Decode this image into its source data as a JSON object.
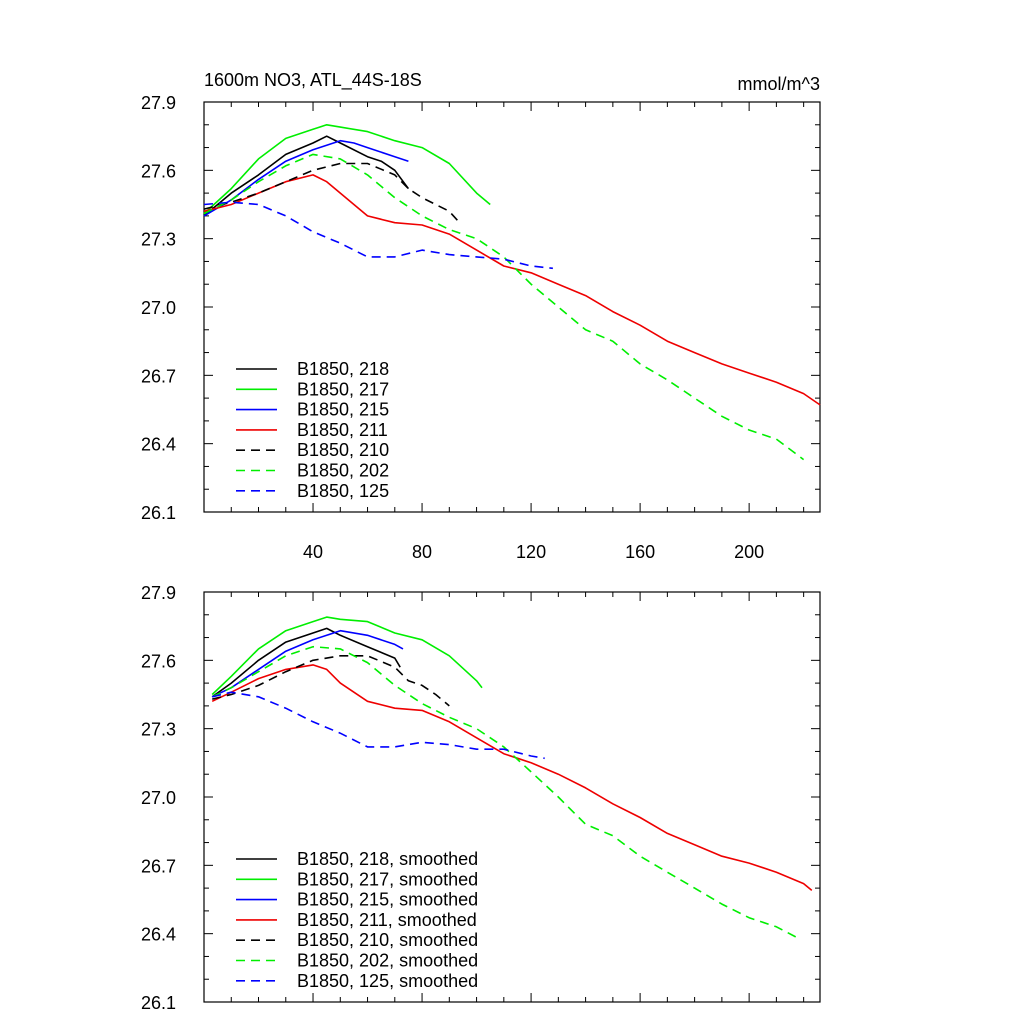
{
  "chart_data": [
    {
      "type": "line",
      "title": "1600m NO3, ATL_44S-18S",
      "units": "mmol/m^3",
      "xlim": [
        0,
        226
      ],
      "ylim": [
        26.1,
        27.9
      ],
      "xticks": [
        40,
        80,
        120,
        160,
        200
      ],
      "xtick_labels": [
        "40",
        "80",
        "120",
        "160",
        "200"
      ],
      "yticks": [
        26.1,
        26.4,
        26.7,
        27.0,
        27.3,
        27.6,
        27.9
      ],
      "ytick_labels": [
        "26.1",
        "26.4",
        "26.7",
        "27.0",
        "27.3",
        "27.6",
        "27.9"
      ],
      "legend_position": "bottom-left",
      "series": [
        {
          "name": "B1850, 218",
          "color": "#000000",
          "dash": false,
          "x": [
            0,
            10,
            20,
            30,
            40,
            45,
            50,
            60,
            65,
            70,
            75
          ],
          "y": [
            27.4,
            27.5,
            27.58,
            27.67,
            27.72,
            27.75,
            27.72,
            27.66,
            27.64,
            27.6,
            27.52
          ]
        },
        {
          "name": "B1850, 217",
          "color": "#00ee00",
          "dash": false,
          "x": [
            0,
            10,
            20,
            30,
            40,
            45,
            50,
            60,
            70,
            80,
            90,
            100,
            105
          ],
          "y": [
            27.41,
            27.52,
            27.65,
            27.74,
            27.78,
            27.8,
            27.79,
            27.77,
            27.73,
            27.7,
            27.63,
            27.5,
            27.45
          ]
        },
        {
          "name": "B1850, 215",
          "color": "#0000ff",
          "dash": false,
          "x": [
            0,
            10,
            20,
            30,
            40,
            45,
            50,
            55,
            60,
            70,
            75
          ],
          "y": [
            27.4,
            27.47,
            27.56,
            27.64,
            27.69,
            27.71,
            27.73,
            27.72,
            27.7,
            27.66,
            27.64
          ]
        },
        {
          "name": "B1850, 211",
          "color": "#ee0000",
          "dash": false,
          "x": [
            0,
            10,
            20,
            30,
            40,
            45,
            50,
            60,
            70,
            80,
            90,
            100,
            110,
            120,
            130,
            140,
            150,
            160,
            170,
            180,
            190,
            200,
            210,
            220,
            226
          ],
          "y": [
            27.42,
            27.45,
            27.5,
            27.55,
            27.58,
            27.55,
            27.5,
            27.4,
            27.37,
            27.36,
            27.32,
            27.25,
            27.18,
            27.15,
            27.1,
            27.05,
            26.98,
            26.92,
            26.85,
            26.8,
            26.75,
            26.71,
            26.67,
            26.62,
            26.57
          ]
        },
        {
          "name": "B1850, 210",
          "color": "#000000",
          "dash": true,
          "x": [
            0,
            10,
            20,
            30,
            40,
            50,
            60,
            70,
            75,
            80,
            85,
            90,
            93
          ],
          "y": [
            27.43,
            27.46,
            27.5,
            27.55,
            27.6,
            27.63,
            27.63,
            27.58,
            27.52,
            27.48,
            27.45,
            27.42,
            27.38
          ]
        },
        {
          "name": "B1850, 202",
          "color": "#00ee00",
          "dash": true,
          "x": [
            0,
            10,
            20,
            30,
            40,
            50,
            60,
            70,
            80,
            90,
            100,
            110,
            120,
            130,
            140,
            150,
            160,
            170,
            180,
            190,
            200,
            210,
            220
          ],
          "y": [
            27.41,
            27.47,
            27.55,
            27.62,
            27.67,
            27.65,
            27.58,
            27.48,
            27.4,
            27.34,
            27.3,
            27.22,
            27.1,
            27.0,
            26.9,
            26.85,
            26.75,
            26.68,
            26.6,
            26.52,
            26.46,
            26.42,
            26.33
          ]
        },
        {
          "name": "B1850, 125",
          "color": "#0000ff",
          "dash": true,
          "x": [
            0,
            10,
            20,
            30,
            40,
            50,
            60,
            70,
            80,
            90,
            100,
            110,
            120,
            128
          ],
          "y": [
            27.45,
            27.46,
            27.45,
            27.4,
            27.33,
            27.28,
            27.22,
            27.22,
            27.25,
            27.23,
            27.22,
            27.21,
            27.18,
            27.17
          ]
        }
      ]
    },
    {
      "type": "line",
      "title": "",
      "xlim": [
        0,
        226
      ],
      "ylim": [
        26.1,
        27.9
      ],
      "xticks": [
        40,
        80,
        120,
        160,
        200
      ],
      "yticks": [
        26.1,
        26.4,
        26.7,
        27.0,
        27.3,
        27.6,
        27.9
      ],
      "ytick_labels": [
        "26.1",
        "26.4",
        "26.7",
        "27.0",
        "27.3",
        "27.6",
        "27.9"
      ],
      "legend_position": "bottom-left",
      "series": [
        {
          "name": "B1850, 218, smoothed",
          "color": "#000000",
          "dash": false,
          "x": [
            3,
            10,
            20,
            30,
            40,
            45,
            50,
            60,
            70,
            72
          ],
          "y": [
            27.44,
            27.5,
            27.6,
            27.68,
            27.72,
            27.74,
            27.71,
            27.66,
            27.61,
            27.57
          ]
        },
        {
          "name": "B1850, 217, smoothed",
          "color": "#00ee00",
          "dash": false,
          "x": [
            3,
            10,
            20,
            30,
            40,
            45,
            50,
            60,
            70,
            80,
            90,
            100,
            102
          ],
          "y": [
            27.45,
            27.53,
            27.65,
            27.73,
            27.77,
            27.79,
            27.78,
            27.77,
            27.72,
            27.69,
            27.62,
            27.51,
            27.48
          ]
        },
        {
          "name": "B1850, 215, smoothed",
          "color": "#0000ff",
          "dash": false,
          "x": [
            3,
            10,
            20,
            30,
            40,
            45,
            50,
            60,
            70,
            73
          ],
          "y": [
            27.44,
            27.48,
            27.56,
            27.64,
            27.69,
            27.71,
            27.73,
            27.71,
            27.67,
            27.65
          ]
        },
        {
          "name": "B1850, 211, smoothed",
          "color": "#ee0000",
          "dash": false,
          "x": [
            3,
            10,
            20,
            30,
            40,
            45,
            50,
            60,
            70,
            80,
            90,
            100,
            110,
            120,
            130,
            140,
            150,
            160,
            170,
            180,
            190,
            200,
            210,
            220,
            223
          ],
          "y": [
            27.42,
            27.46,
            27.52,
            27.56,
            27.58,
            27.56,
            27.5,
            27.42,
            27.39,
            27.38,
            27.33,
            27.26,
            27.19,
            27.15,
            27.1,
            27.04,
            26.97,
            26.91,
            26.84,
            26.79,
            26.74,
            26.71,
            26.67,
            26.62,
            26.59
          ]
        },
        {
          "name": "B1850, 210, smoothed",
          "color": "#000000",
          "dash": true,
          "x": [
            3,
            10,
            20,
            30,
            40,
            50,
            60,
            70,
            75,
            80,
            85,
            90
          ],
          "y": [
            27.43,
            27.45,
            27.49,
            27.55,
            27.6,
            27.62,
            27.62,
            27.57,
            27.51,
            27.49,
            27.45,
            27.4
          ]
        },
        {
          "name": "B1850, 202, smoothed",
          "color": "#00ee00",
          "dash": true,
          "x": [
            3,
            10,
            20,
            30,
            40,
            50,
            60,
            70,
            80,
            90,
            100,
            110,
            120,
            130,
            140,
            150,
            160,
            170,
            180,
            190,
            200,
            210,
            218
          ],
          "y": [
            27.44,
            27.48,
            27.55,
            27.62,
            27.66,
            27.65,
            27.59,
            27.49,
            27.41,
            27.35,
            27.3,
            27.22,
            27.11,
            27.0,
            26.88,
            26.83,
            26.74,
            26.67,
            26.6,
            26.53,
            26.47,
            26.43,
            26.38
          ]
        },
        {
          "name": "B1850, 125, smoothed",
          "color": "#0000ff",
          "dash": true,
          "x": [
            3,
            10,
            20,
            30,
            40,
            50,
            60,
            70,
            80,
            90,
            100,
            110,
            120,
            125
          ],
          "y": [
            27.44,
            27.46,
            27.44,
            27.39,
            27.33,
            27.28,
            27.22,
            27.22,
            27.24,
            27.23,
            27.21,
            27.21,
            27.18,
            27.17
          ]
        }
      ]
    }
  ]
}
